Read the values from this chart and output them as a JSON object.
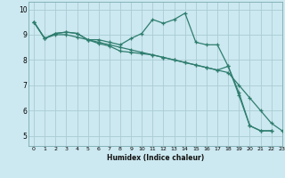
{
  "title": "",
  "xlabel": "Humidex (Indice chaleur)",
  "bg_color": "#cce8f0",
  "grid_color": "#aaccd4",
  "line_color": "#2e7d6e",
  "xlim": [
    -0.5,
    23
  ],
  "ylim": [
    4.6,
    10.3
  ],
  "yticks": [
    5,
    6,
    7,
    8,
    9,
    10
  ],
  "xticks": [
    0,
    1,
    2,
    3,
    4,
    5,
    6,
    7,
    8,
    9,
    10,
    11,
    12,
    13,
    14,
    15,
    16,
    17,
    18,
    19,
    20,
    21,
    22,
    23
  ],
  "series": [
    [
      9.5,
      8.85,
      9.05,
      9.1,
      9.05,
      8.8,
      8.8,
      8.7,
      8.6,
      8.85,
      9.05,
      9.6,
      9.45,
      9.6,
      9.85,
      8.7,
      8.6,
      8.6,
      7.75,
      6.7,
      5.4,
      5.2,
      5.2,
      null
    ],
    [
      9.5,
      8.85,
      9.05,
      9.1,
      9.05,
      8.8,
      8.65,
      8.55,
      8.35,
      8.3,
      8.25,
      8.2,
      8.1,
      8.0,
      7.9,
      7.8,
      7.7,
      7.6,
      7.75,
      6.6,
      5.4,
      5.2,
      5.2,
      null
    ],
    [
      9.5,
      8.85,
      9.0,
      9.0,
      8.9,
      8.8,
      8.7,
      8.6,
      8.5,
      8.4,
      8.3,
      8.2,
      8.1,
      8.0,
      7.9,
      7.8,
      7.7,
      7.6,
      7.5,
      7.0,
      6.5,
      6.0,
      5.5,
      5.2
    ]
  ]
}
